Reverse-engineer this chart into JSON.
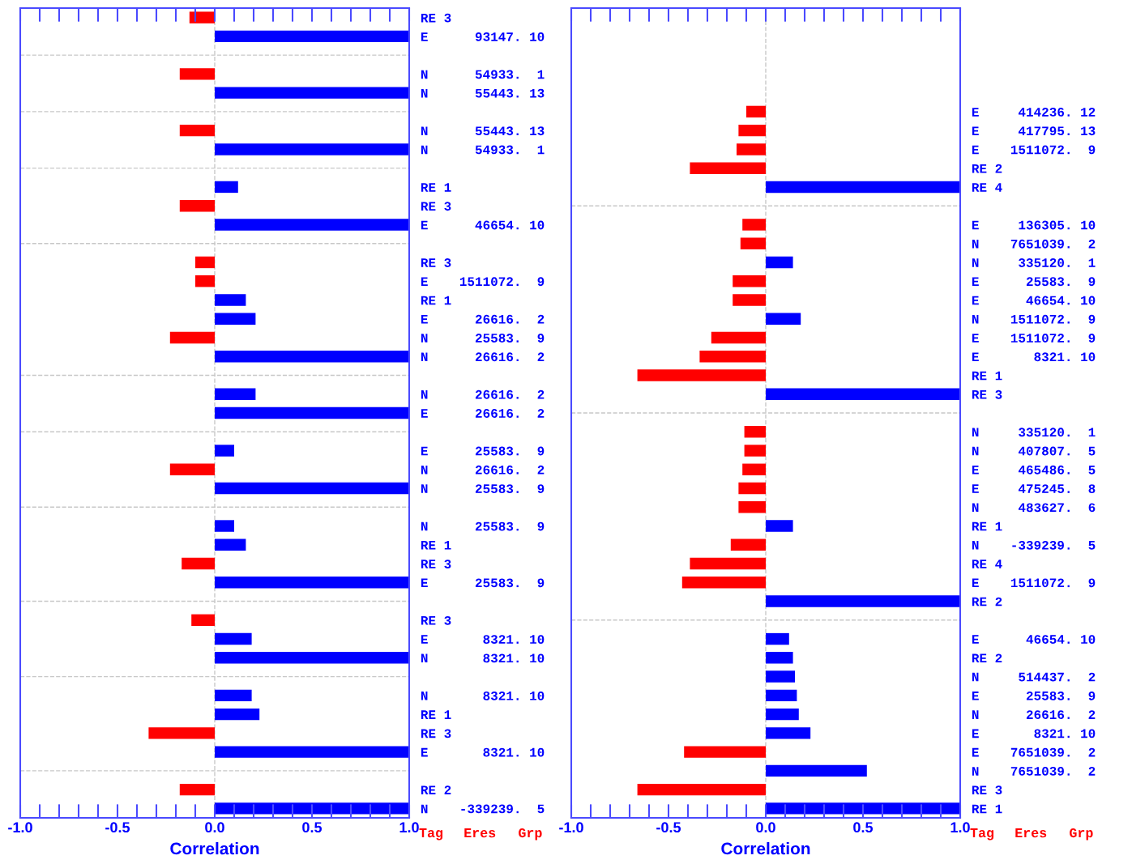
{
  "chart_data": [
    {
      "type": "bar",
      "orientation": "horizontal",
      "xlabel": "Correlation",
      "xlim": [
        -1,
        1
      ],
      "xticks": [
        {
          "value": -1,
          "label": "-1.0"
        },
        {
          "value": -0.5,
          "label": "-0.5"
        },
        {
          "value": 0,
          "label": "0.0"
        },
        {
          "value": 0.5,
          "label": "0.5"
        },
        {
          "value": 1,
          "label": "1.0"
        }
      ],
      "grid": "y",
      "ref_lines": [
        {
          "axis": "x",
          "value": 0,
          "color": "#c8c8c8",
          "line_style": "dashed"
        }
      ],
      "annotations": [
        "Tag",
        "Eres",
        "Grp"
      ],
      "categories": [
        "RE 3",
        "E 93147. 10",
        null,
        "N 54933. 1",
        "N 55443. 13",
        null,
        "N 55443. 13",
        "N 54933. 1",
        null,
        "RE 1",
        "RE 3",
        "E 46654. 10",
        null,
        "RE 3",
        "E 1511072. 9",
        "RE 1",
        "E 26616. 2",
        "N 25583. 9",
        "N 26616. 2",
        null,
        "N 26616. 2",
        "E 26616. 2",
        null,
        "E 25583. 9",
        "N 26616. 2",
        "N 25583. 9",
        null,
        "N 25583. 9",
        "RE 1",
        "RE 3",
        "E 25583. 9",
        null,
        "RE 3",
        "E 8321. 10",
        "N 8321. 10",
        null,
        "N 8321. 10",
        "RE 1",
        "RE 3",
        "E 8321. 10",
        null,
        "RE 2",
        "N -339239. 5"
      ],
      "values": [
        -0.13,
        1.0,
        null,
        -0.18,
        1.0,
        null,
        -0.18,
        1.0,
        null,
        0.12,
        -0.18,
        1.0,
        null,
        -0.1,
        -0.1,
        0.16,
        0.21,
        -0.23,
        1.0,
        null,
        0.21,
        1.0,
        null,
        0.1,
        -0.23,
        1.0,
        null,
        0.1,
        0.16,
        -0.17,
        1.0,
        null,
        -0.12,
        0.19,
        1.0,
        null,
        0.19,
        0.23,
        -0.34,
        1.0,
        null,
        -0.18,
        1.0
      ],
      "colors": [
        "#ff0000",
        "#0000ff",
        null,
        "#ff0000",
        "#0000ff",
        null,
        "#ff0000",
        "#0000ff",
        null,
        "#0000ff",
        "#ff0000",
        "#0000ff",
        null,
        "#ff0000",
        "#ff0000",
        "#0000ff",
        "#0000ff",
        "#ff0000",
        "#0000ff",
        null,
        "#0000ff",
        "#0000ff",
        null,
        "#0000ff",
        "#ff0000",
        "#0000ff",
        null,
        "#0000ff",
        "#0000ff",
        "#ff0000",
        "#0000ff",
        null,
        "#ff0000",
        "#0000ff",
        "#0000ff",
        null,
        "#0000ff",
        "#0000ff",
        "#ff0000",
        "#0000ff",
        null,
        "#ff0000",
        "#0000ff"
      ]
    },
    {
      "type": "bar",
      "orientation": "horizontal",
      "xlabel": "Correlation",
      "xlim": [
        -1,
        1
      ],
      "xticks": [
        {
          "value": -1,
          "label": "-1.0"
        },
        {
          "value": -0.5,
          "label": "-0.5"
        },
        {
          "value": 0,
          "label": "0.0"
        },
        {
          "value": 0.5,
          "label": "0.5"
        },
        {
          "value": 1,
          "label": "1.0"
        }
      ],
      "grid": "y",
      "ref_lines": [
        {
          "axis": "x",
          "value": 0,
          "color": "#c8c8c8",
          "line_style": "dashed"
        }
      ],
      "annotations": [
        "Tag",
        "Eres",
        "Grp"
      ],
      "categories": [
        null,
        null,
        null,
        null,
        null,
        "E 414236. 12",
        "E 417795. 13",
        "E 1511072. 9",
        "RE 2",
        "RE 4",
        null,
        "E 136305. 10",
        "N 7651039. 2",
        "N 335120. 1",
        "E 25583. 9",
        "E 46654. 10",
        "N 1511072. 9",
        "E 1511072. 9",
        "E 8321. 10",
        "RE 1",
        "RE 3",
        null,
        "N 335120. 1",
        "N 407807. 5",
        "E 465486. 5",
        "E 475245. 8",
        "N 483627. 6",
        "RE 1",
        "N -339239. 5",
        "RE 4",
        "E 1511072. 9",
        "RE 2",
        null,
        "E 46654. 10",
        "RE 2",
        "N 514437. 2",
        "E 25583. 9",
        "N 26616. 2",
        "E 8321. 10",
        "E 7651039. 2",
        "N 7651039. 2",
        "RE 3",
        "RE 1"
      ],
      "values": [
        null,
        null,
        null,
        null,
        null,
        -0.1,
        -0.14,
        -0.15,
        -0.39,
        1.0,
        null,
        -0.12,
        -0.13,
        0.14,
        -0.17,
        -0.17,
        0.18,
        -0.28,
        -0.34,
        -0.66,
        1.0,
        null,
        -0.11,
        -0.11,
        -0.12,
        -0.14,
        -0.14,
        0.14,
        -0.18,
        -0.39,
        -0.43,
        1.0,
        null,
        0.12,
        0.14,
        0.15,
        0.16,
        0.17,
        0.23,
        -0.42,
        0.52,
        -0.66,
        1.0
      ],
      "colors": [
        null,
        null,
        null,
        null,
        null,
        "#ff0000",
        "#ff0000",
        "#ff0000",
        "#ff0000",
        "#0000ff",
        null,
        "#ff0000",
        "#ff0000",
        "#0000ff",
        "#ff0000",
        "#ff0000",
        "#0000ff",
        "#ff0000",
        "#ff0000",
        "#ff0000",
        "#0000ff",
        null,
        "#ff0000",
        "#ff0000",
        "#ff0000",
        "#ff0000",
        "#ff0000",
        "#0000ff",
        "#ff0000",
        "#ff0000",
        "#ff0000",
        "#0000ff",
        null,
        "#0000ff",
        "#0000ff",
        "#0000ff",
        "#0000ff",
        "#0000ff",
        "#0000ff",
        "#ff0000",
        "#0000ff",
        "#ff0000",
        "#0000ff"
      ]
    }
  ]
}
